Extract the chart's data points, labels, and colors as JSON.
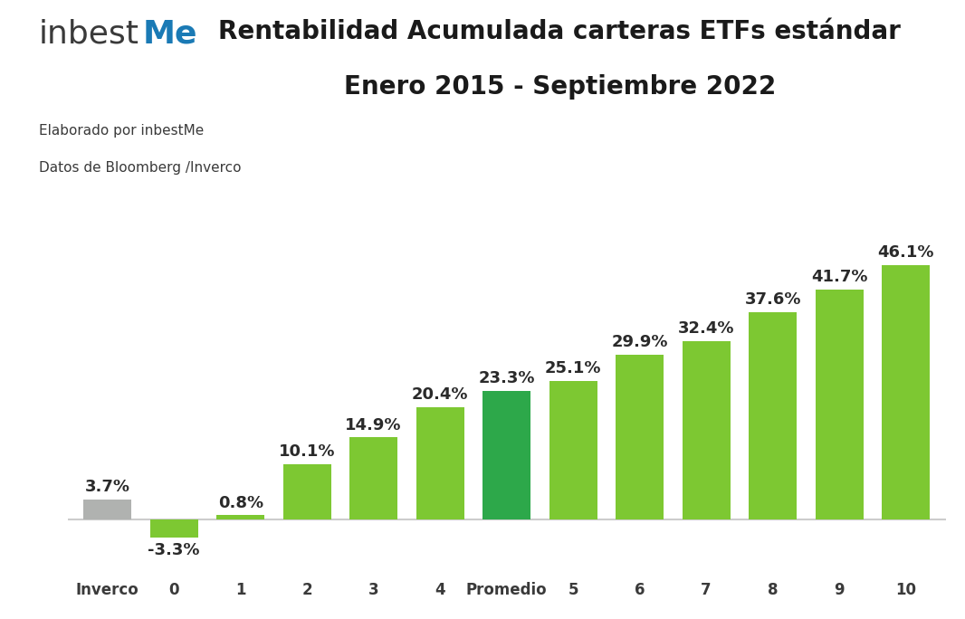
{
  "title_line1": "Rentabilidad Acumulada carteras ETFs estándar",
  "title_line2": "Enero 2015 - Septiembre 2022",
  "subtitle1": "Elaborado por inbestMe",
  "subtitle2": "Datos de Bloomberg /Inverco",
  "categories": [
    "Inverco",
    "0",
    "1",
    "2",
    "3",
    "4",
    "Promedio",
    "5",
    "6",
    "7",
    "8",
    "9",
    "10"
  ],
  "values": [
    3.7,
    -3.3,
    0.8,
    10.1,
    14.9,
    20.4,
    23.3,
    25.1,
    29.9,
    32.4,
    37.6,
    41.7,
    46.1
  ],
  "bar_colors": [
    "#b0b2b0",
    "#7dc832",
    "#7dc832",
    "#7dc832",
    "#7dc832",
    "#7dc832",
    "#2da84a",
    "#7dc832",
    "#7dc832",
    "#7dc832",
    "#7dc832",
    "#7dc832",
    "#7dc832"
  ],
  "label_color": "#2a2a2a",
  "background_color": "#ffffff",
  "title_fontsize": 20,
  "tick_fontsize": 12,
  "bar_label_fontsize": 13,
  "ylim": [
    -9,
    56
  ],
  "figsize": [
    10.66,
    6.84
  ],
  "dpi": 100,
  "logo_text_inbest": "inbest",
  "logo_text_me": "Me",
  "logo_color_inbest": "#3a3a3a",
  "logo_color_me": "#1a7ab5"
}
